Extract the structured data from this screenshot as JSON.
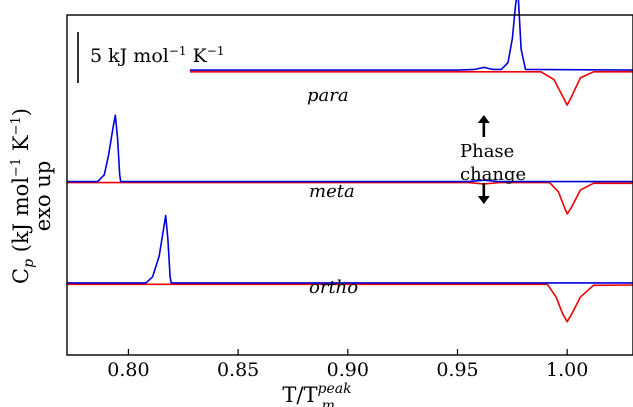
{
  "chart_data": {
    "type": "line",
    "xlabel_main": "T/T",
    "xlabel_sup": "peak",
    "xlabel_sub": "m",
    "ylabel_line1_prefix": "C",
    "ylabel_line1_sub": "p",
    "ylabel_line1_suffix": " (kJ mol",
    "ylabel_line1_exp1": "−1",
    "ylabel_line1_mid": " K",
    "ylabel_line1_exp2": "−1",
    "ylabel_line1_end": ")",
    "ylabel_line2": "exo up",
    "xlim": [
      0.772,
      1.03
    ],
    "ylim": [
      0,
      10
    ],
    "x_ticks": [
      0.8,
      0.85,
      0.9,
      0.95,
      1.0
    ],
    "x_tick_labels": [
      "0.80",
      "0.85",
      "0.90",
      "0.95",
      "1.00"
    ],
    "scale_bar": {
      "value_kJ_per_mol_K": 5,
      "label_prefix": "5 kJ mol",
      "label_exp1": "−1",
      "label_mid": " K",
      "label_exp2": "−1"
    },
    "annotation": {
      "line1": "Phase",
      "line2": "change",
      "x": 0.962
    },
    "colors": {
      "heating": "#0000dd",
      "cooling": "#ee0000",
      "axis": "#000000"
    },
    "series": [
      {
        "name": "para",
        "baseline": 8.35,
        "blue": [
          [
            0.828,
            8.38
          ],
          [
            0.95,
            8.38
          ],
          [
            0.958,
            8.4
          ],
          [
            0.962,
            8.46
          ],
          [
            0.966,
            8.4
          ],
          [
            0.97,
            8.4
          ],
          [
            0.973,
            8.6
          ],
          [
            0.975,
            9.3
          ],
          [
            0.9765,
            10.3
          ],
          [
            0.9775,
            10.75
          ],
          [
            0.978,
            10.2
          ],
          [
            0.979,
            9.0
          ],
          [
            0.981,
            8.4
          ],
          [
            1.03,
            8.38
          ]
        ],
        "red": [
          [
            0.828,
            8.33
          ],
          [
            0.988,
            8.33
          ],
          [
            0.994,
            8.1
          ],
          [
            0.998,
            7.6
          ],
          [
            1.0,
            7.35
          ],
          [
            1.002,
            7.6
          ],
          [
            1.006,
            8.15
          ],
          [
            1.012,
            8.33
          ],
          [
            1.03,
            8.33
          ]
        ]
      },
      {
        "name": "meta",
        "baseline": 5.08,
        "blue": [
          [
            0.772,
            5.1
          ],
          [
            0.786,
            5.1
          ],
          [
            0.789,
            5.3
          ],
          [
            0.791,
            5.9
          ],
          [
            0.793,
            6.7
          ],
          [
            0.794,
            7.05
          ],
          [
            0.795,
            6.4
          ],
          [
            0.796,
            5.3
          ],
          [
            0.7965,
            5.1
          ],
          [
            0.955,
            5.1
          ],
          [
            0.962,
            5.14
          ],
          [
            0.969,
            5.1
          ],
          [
            1.03,
            5.1
          ]
        ],
        "red": [
          [
            0.772,
            5.07
          ],
          [
            0.955,
            5.07
          ],
          [
            0.962,
            5.03
          ],
          [
            0.969,
            5.07
          ],
          [
            0.992,
            5.07
          ],
          [
            0.996,
            4.8
          ],
          [
            0.999,
            4.3
          ],
          [
            1.0,
            4.15
          ],
          [
            1.002,
            4.35
          ],
          [
            1.006,
            4.85
          ],
          [
            1.012,
            5.05
          ],
          [
            1.03,
            5.05
          ]
        ]
      },
      {
        "name": "ortho",
        "baseline": 2.1,
        "blue": [
          [
            0.772,
            2.12
          ],
          [
            0.808,
            2.12
          ],
          [
            0.811,
            2.3
          ],
          [
            0.814,
            2.9
          ],
          [
            0.816,
            3.7
          ],
          [
            0.817,
            4.1
          ],
          [
            0.818,
            3.4
          ],
          [
            0.819,
            2.3
          ],
          [
            0.8195,
            2.12
          ],
          [
            1.03,
            2.12
          ]
        ],
        "red": [
          [
            0.772,
            2.08
          ],
          [
            0.991,
            2.08
          ],
          [
            0.995,
            1.7
          ],
          [
            0.998,
            1.2
          ],
          [
            1.0,
            0.98
          ],
          [
            1.002,
            1.2
          ],
          [
            1.006,
            1.7
          ],
          [
            1.012,
            2.05
          ],
          [
            1.03,
            2.06
          ]
        ]
      }
    ]
  }
}
